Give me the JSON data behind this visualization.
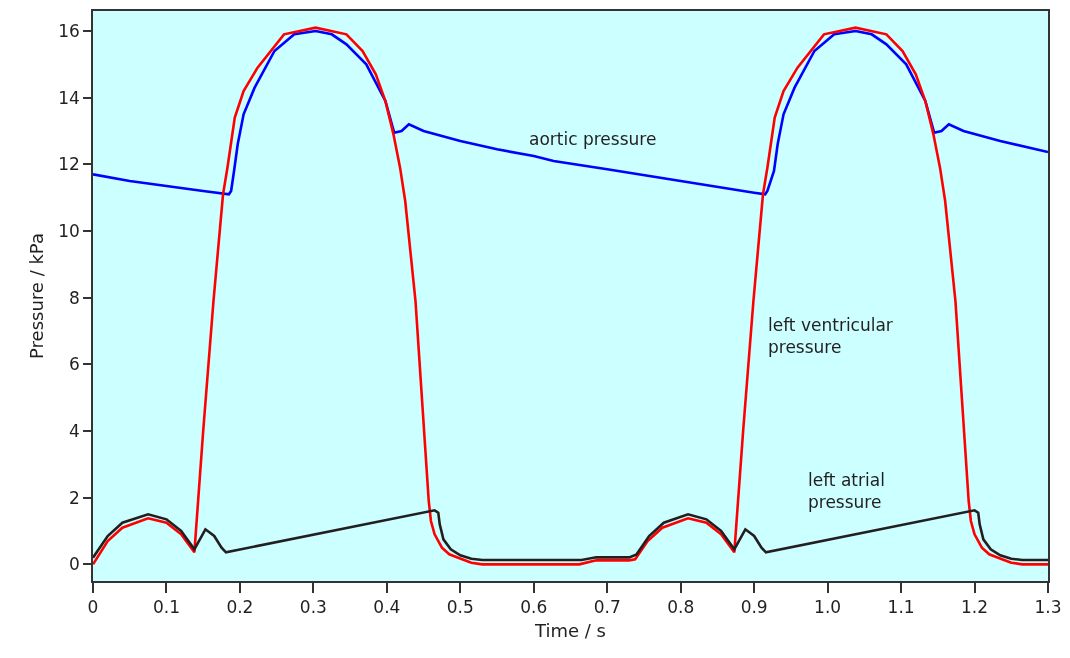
{
  "chart_data": {
    "type": "line",
    "xlabel": "Time / s",
    "ylabel": "Pressure / kPa",
    "xlim": [
      0,
      1.3
    ],
    "ylim": [
      -0.5,
      16.6
    ],
    "xticks": [
      0,
      0.1,
      0.2,
      0.3,
      0.4,
      0.5,
      0.6,
      0.7,
      0.8,
      0.9,
      {
        "value": 1,
        "label": "1.0"
      },
      1.1,
      1.2,
      1.3
    ],
    "yticks": [
      0,
      2,
      4,
      6,
      8,
      10,
      12,
      14,
      16
    ],
    "grid": false,
    "legend": false,
    "marker": "none",
    "line_style": "solid",
    "series": [
      {
        "name": "aortic pressure",
        "color": "#0000ff",
        "x": [
          0,
          0.05,
          0.1,
          0.15,
          0.185,
          0.188,
          0.192,
          0.197,
          0.205,
          0.22,
          0.247,
          0.274,
          0.303,
          0.325,
          0.345,
          0.372,
          0.398,
          0.41,
          0.42,
          0.43,
          0.45,
          0.5,
          0.55,
          0.6,
          0.627,
          0.7,
          0.8,
          0.9,
          0.915,
          0.918,
          0.927,
          0.932,
          0.94,
          0.955,
          0.982,
          1.009,
          1.038,
          1.06,
          1.08,
          1.107,
          1.133,
          1.145,
          1.155,
          1.165,
          1.185,
          1.235,
          1.3
        ],
        "values": [
          11.7,
          11.5,
          11.35,
          11.2,
          11.1,
          11.2,
          11.8,
          12.6,
          13.5,
          14.3,
          15.4,
          15.9,
          16.0,
          15.9,
          15.6,
          15.0,
          13.9,
          12.95,
          13.0,
          13.2,
          13.0,
          12.7,
          12.45,
          12.25,
          12.1,
          11.85,
          11.5,
          11.15,
          11.1,
          11.2,
          11.8,
          12.6,
          13.5,
          14.3,
          15.4,
          15.9,
          16.0,
          15.9,
          15.6,
          15.0,
          13.9,
          12.95,
          13.0,
          13.2,
          13.0,
          12.7,
          12.37
        ]
      },
      {
        "name": "left ventricular pressure",
        "color": "#ff0000",
        "x": [
          0,
          0.02,
          0.04,
          0.075,
          0.1,
          0.12,
          0.138,
          0.15,
          0.164,
          0.177,
          0.183,
          0.193,
          0.205,
          0.224,
          0.26,
          0.303,
          0.345,
          0.367,
          0.385,
          0.398,
          0.409,
          0.418,
          0.425,
          0.439,
          0.448,
          0.457,
          0.46,
          0.465,
          0.475,
          0.485,
          0.497,
          0.515,
          0.53,
          0.662,
          0.685,
          0.73,
          0.738,
          0.755,
          0.775,
          0.81,
          0.835,
          0.855,
          0.873,
          0.885,
          0.899,
          0.912,
          0.918,
          0.928,
          0.94,
          0.959,
          0.995,
          1.038,
          1.08,
          1.102,
          1.12,
          1.133,
          1.144,
          1.153,
          1.16,
          1.174,
          1.183,
          1.192,
          1.195,
          1.2,
          1.21,
          1.22,
          1.232,
          1.25,
          1.265,
          1.3
        ],
        "values": [
          0,
          0.7,
          1.1,
          1.38,
          1.25,
          0.9,
          0.36,
          4.0,
          7.9,
          11.1,
          11.9,
          13.4,
          14.2,
          14.9,
          15.9,
          16.1,
          15.9,
          15.4,
          14.7,
          13.9,
          12.9,
          11.9,
          10.9,
          7.9,
          4.9,
          1.9,
          1.3,
          0.9,
          0.5,
          0.3,
          0.2,
          0.05,
          0,
          0,
          0.12,
          0.12,
          0.15,
          0.7,
          1.1,
          1.38,
          1.25,
          0.9,
          0.36,
          4.0,
          7.9,
          11.1,
          11.9,
          13.4,
          14.2,
          14.9,
          15.9,
          16.1,
          15.9,
          15.4,
          14.7,
          13.9,
          12.9,
          11.9,
          10.9,
          7.9,
          4.9,
          1.9,
          1.3,
          0.9,
          0.5,
          0.3,
          0.2,
          0.05,
          0,
          0
        ]
      },
      {
        "name": "left atrial pressure",
        "color": "#231f20",
        "x": [
          0,
          0.02,
          0.04,
          0.075,
          0.1,
          0.12,
          0.138,
          0.153,
          0.165,
          0.175,
          0.181,
          0.465,
          0.47,
          0.472,
          0.477,
          0.487,
          0.5,
          0.515,
          0.53,
          0.665,
          0.685,
          0.73,
          0.74,
          0.757,
          0.777,
          0.81,
          0.835,
          0.855,
          0.873,
          0.888,
          0.9,
          0.91,
          0.916,
          1.2,
          1.205,
          1.207,
          1.212,
          1.222,
          1.235,
          1.25,
          1.265,
          1.3
        ],
        "values": [
          0.2,
          0.85,
          1.25,
          1.5,
          1.35,
          1.0,
          0.45,
          1.05,
          0.85,
          0.5,
          0.36,
          1.62,
          1.55,
          1.2,
          0.75,
          0.45,
          0.27,
          0.17,
          0.13,
          0.13,
          0.21,
          0.21,
          0.3,
          0.85,
          1.25,
          1.5,
          1.35,
          1.0,
          0.45,
          1.05,
          0.85,
          0.5,
          0.36,
          1.62,
          1.55,
          1.2,
          0.75,
          0.45,
          0.27,
          0.17,
          0.13,
          0.13
        ]
      }
    ]
  }
}
